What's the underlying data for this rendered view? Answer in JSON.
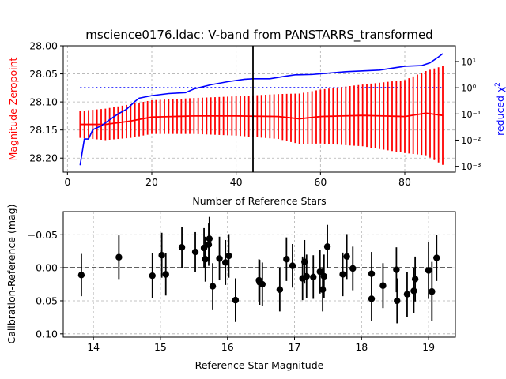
{
  "figure": {
    "title": "mscience0176.ldac: V-band from PANSTARRS_transformed"
  },
  "chart_data": [
    {
      "type": "line",
      "xlabel": "Number of Reference Stars",
      "ylabel_left": "Magnitude Zeropoint",
      "ylabel_right": "reduced χ",
      "ylabel_right_sup": "2",
      "left_color": "#ff0000",
      "right_color": "#0000ff",
      "xlim": [
        -1,
        92
      ],
      "ylim_left": [
        28.225,
        28.0
      ],
      "ylim_left_inverted": true,
      "ylim_right_log": [
        0.0006,
        40
      ],
      "right_axis_scale": "log",
      "xticks": [
        0,
        20,
        40,
        60,
        80
      ],
      "yticks_left": [
        28.0,
        28.05,
        28.1,
        28.15,
        28.2
      ],
      "ytick_labels_left": [
        "28.00",
        "28.05",
        "28.10",
        "28.15",
        "28.20"
      ],
      "yticks_right": [
        0.001,
        0.01,
        0.1,
        1,
        10
      ],
      "ytick_labels_right": [
        "10⁻³",
        "10⁻²",
        "10⁻¹",
        "10⁰",
        "10¹"
      ],
      "grid": true,
      "vline_x": 44,
      "reference_chi2": 1.0,
      "series": [
        {
          "name": "zeropoint",
          "x": [
            3,
            9,
            15,
            20,
            30,
            40,
            50,
            55,
            60,
            70,
            80,
            85,
            89
          ],
          "y": [
            28.14,
            28.14,
            28.134,
            28.127,
            28.125,
            28.125,
            28.126,
            28.13,
            28.126,
            28.124,
            28.126,
            28.12,
            28.124
          ],
          "err": [
            0.024,
            0.028,
            0.03,
            0.03,
            0.032,
            0.035,
            0.04,
            0.045,
            0.048,
            0.055,
            0.065,
            0.075,
            0.088
          ]
        },
        {
          "name": "reduced chi2",
          "x": [
            3,
            4,
            5,
            6,
            8,
            10,
            12,
            14,
            16,
            17,
            20,
            24,
            28,
            30,
            34,
            38,
            42,
            44,
            48,
            52,
            54,
            58,
            66,
            74,
            78,
            80,
            84,
            86,
            88,
            89
          ],
          "y": [
            0.0011,
            0.011,
            0.011,
            0.025,
            0.035,
            0.06,
            0.1,
            0.15,
            0.3,
            0.4,
            0.5,
            0.6,
            0.65,
            0.9,
            1.3,
            1.7,
            2.1,
            2.2,
            2.2,
            2.8,
            3.1,
            3.2,
            4.1,
            4.7,
            5.9,
            6.6,
            7.0,
            9.0,
            15.0,
            20.0
          ]
        }
      ]
    },
    {
      "type": "scatter",
      "xlabel": "Reference Star Magnitude",
      "ylabel": "Calibration-Reference (mag)",
      "xlim": [
        13.55,
        19.4
      ],
      "ylim": [
        -0.085,
        0.105
      ],
      "ylim_inverted": true,
      "xticks": [
        14,
        15,
        16,
        17,
        18,
        19
      ],
      "yticks": [
        -0.05,
        0.0,
        0.05,
        0.1
      ],
      "ytick_labels": [
        "−0.05",
        "0.00",
        "0.05",
        "0.10"
      ],
      "grid": true,
      "hline_y": 0.0,
      "points": [
        {
          "x": 13.82,
          "y": 0.011,
          "err": 0.032
        },
        {
          "x": 14.38,
          "y": -0.016,
          "err": 0.033
        },
        {
          "x": 14.88,
          "y": 0.012,
          "err": 0.034
        },
        {
          "x": 15.02,
          "y": -0.019,
          "err": 0.034
        },
        {
          "x": 15.08,
          "y": 0.01,
          "err": 0.032
        },
        {
          "x": 15.32,
          "y": -0.031,
          "err": 0.031
        },
        {
          "x": 15.52,
          "y": -0.024,
          "err": 0.03
        },
        {
          "x": 15.65,
          "y": -0.03,
          "err": 0.03
        },
        {
          "x": 15.67,
          "y": -0.013,
          "err": 0.034
        },
        {
          "x": 15.72,
          "y": -0.035,
          "err": 0.032
        },
        {
          "x": 15.73,
          "y": -0.044,
          "err": 0.033
        },
        {
          "x": 15.78,
          "y": 0.028,
          "err": 0.035
        },
        {
          "x": 15.88,
          "y": -0.014,
          "err": 0.033
        },
        {
          "x": 15.97,
          "y": -0.008,
          "err": 0.034
        },
        {
          "x": 16.02,
          "y": -0.018,
          "err": 0.033
        },
        {
          "x": 16.12,
          "y": 0.049,
          "err": 0.033
        },
        {
          "x": 16.47,
          "y": 0.019,
          "err": 0.032
        },
        {
          "x": 16.52,
          "y": 0.025,
          "err": 0.033
        },
        {
          "x": 16.48,
          "y": 0.022,
          "err": 0.034
        },
        {
          "x": 16.78,
          "y": 0.033,
          "err": 0.033
        },
        {
          "x": 16.88,
          "y": -0.013,
          "err": 0.033
        },
        {
          "x": 16.97,
          "y": -0.003,
          "err": 0.033
        },
        {
          "x": 17.12,
          "y": 0.016,
          "err": 0.033
        },
        {
          "x": 17.15,
          "y": -0.009,
          "err": 0.033
        },
        {
          "x": 17.18,
          "y": 0.013,
          "err": 0.033
        },
        {
          "x": 17.28,
          "y": 0.014,
          "err": 0.033
        },
        {
          "x": 17.38,
          "y": 0.006,
          "err": 0.033
        },
        {
          "x": 17.42,
          "y": 0.033,
          "err": 0.033
        },
        {
          "x": 17.44,
          "y": 0.013,
          "err": 0.033
        },
        {
          "x": 17.49,
          "y": -0.032,
          "err": 0.033
        },
        {
          "x": 17.72,
          "y": 0.01,
          "err": 0.033
        },
        {
          "x": 17.78,
          "y": -0.017,
          "err": 0.034
        },
        {
          "x": 17.87,
          "y": 0.001,
          "err": 0.033
        },
        {
          "x": 18.15,
          "y": 0.009,
          "err": 0.033
        },
        {
          "x": 18.15,
          "y": 0.047,
          "err": 0.034
        },
        {
          "x": 18.32,
          "y": 0.027,
          "err": 0.034
        },
        {
          "x": 18.52,
          "y": 0.003,
          "err": 0.034
        },
        {
          "x": 18.53,
          "y": 0.05,
          "err": 0.034
        },
        {
          "x": 18.68,
          "y": 0.04,
          "err": 0.034
        },
        {
          "x": 18.78,
          "y": 0.035,
          "err": 0.034
        },
        {
          "x": 18.8,
          "y": 0.017,
          "err": 0.034
        },
        {
          "x": 19.0,
          "y": 0.004,
          "err": 0.043
        },
        {
          "x": 19.05,
          "y": 0.036,
          "err": 0.045
        },
        {
          "x": 19.12,
          "y": -0.015,
          "err": 0.035
        }
      ]
    }
  ]
}
